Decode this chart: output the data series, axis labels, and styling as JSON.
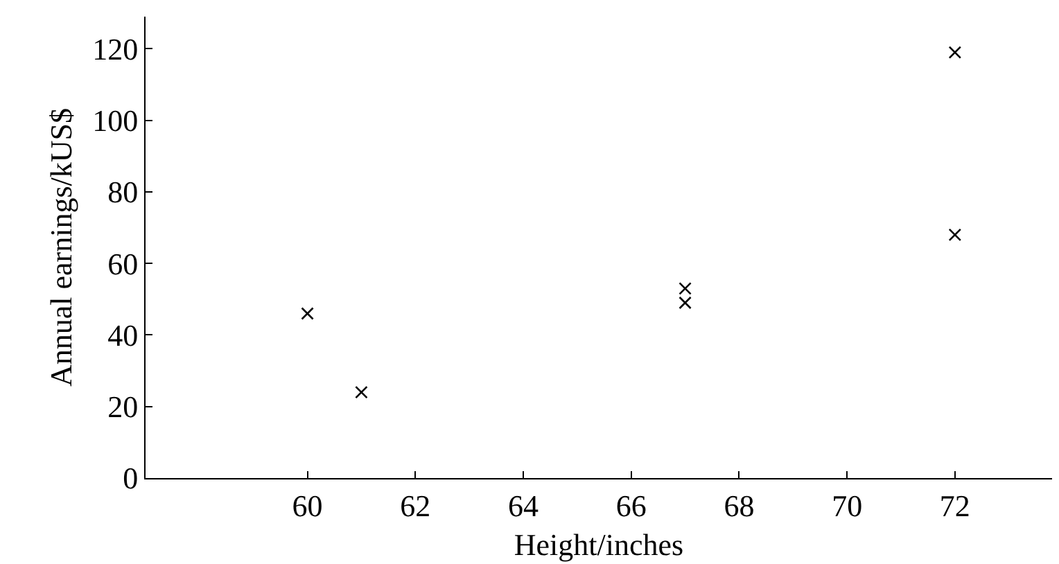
{
  "chart_data": {
    "type": "scatter",
    "xlabel": "Height/inches",
    "ylabel": "Annual earnings/kUS$",
    "x": [
      60,
      61,
      67,
      67,
      72,
      72
    ],
    "values": [
      46,
      24,
      53,
      49,
      119,
      68
    ],
    "color": "#000000",
    "marker": "cross",
    "xlim": [
      57,
      73.8
    ],
    "xticks": [
      60,
      62,
      64,
      66,
      68,
      70,
      72
    ],
    "ylim": [
      0,
      129
    ],
    "yticks": [
      0,
      20,
      40,
      60,
      80,
      100,
      120
    ],
    "grid": false
  }
}
